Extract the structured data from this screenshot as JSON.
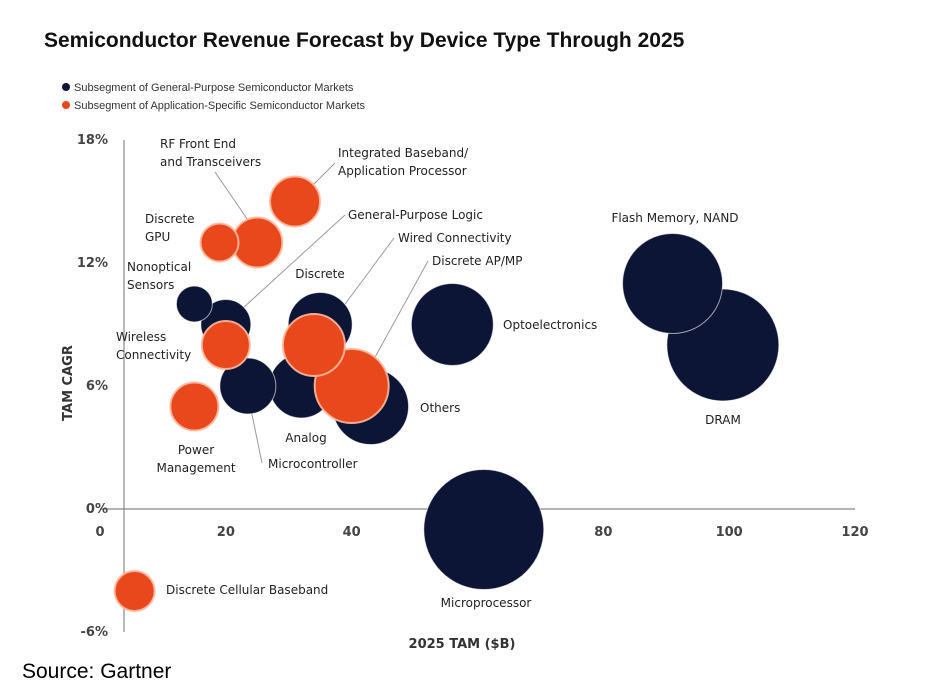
{
  "chart_data": {
    "type": "bubble",
    "title": "Semiconductor Revenue Forecast by Device Type Through 2025",
    "xlabel": "2025 TAM ($B)",
    "ylabel": "TAM CAGR",
    "xlim": [
      0,
      120
    ],
    "ylim": [
      -6,
      18
    ],
    "x_ticks": [
      "0",
      "20",
      "40",
      "60",
      "80",
      "100",
      "120"
    ],
    "y_ticks": [
      "18%",
      "12%",
      "6%",
      "0%",
      "-6%"
    ],
    "legend_position": "top-left",
    "grid": false,
    "colors": {
      "general": "#0d1536",
      "application": "#e8481c"
    },
    "legend": [
      {
        "key": "general",
        "label": "Subsegment of General-Purpose Semiconductor Markets"
      },
      {
        "key": "application",
        "label": "Subsegment of Application-Specific Semiconductor Markets"
      }
    ],
    "points": [
      {
        "label": "DRAM",
        "x": 99,
        "y": 8,
        "size": 56,
        "group": "general"
      },
      {
        "label": "Flash Memory, NAND",
        "x": 91,
        "y": 11,
        "size": 50,
        "group": "general"
      },
      {
        "label": "Microprocessor",
        "x": 61,
        "y": -1,
        "size": 60,
        "group": "general"
      },
      {
        "label": "Optoelectronics",
        "x": 56,
        "y": 9,
        "size": 41,
        "group": "general"
      },
      {
        "label": "Others",
        "x": 43,
        "y": 5,
        "size": 38,
        "group": "general"
      },
      {
        "label": "Analog",
        "x": 32,
        "y": 6,
        "size": 32,
        "group": "general"
      },
      {
        "label": "Discrete",
        "x": 35,
        "y": 9,
        "size": 32,
        "group": "general"
      },
      {
        "label": "Microcontroller",
        "x": 23.5,
        "y": 6,
        "size": 28,
        "group": "general"
      },
      {
        "label": "General-Purpose  Logic",
        "x": 20,
        "y": 9,
        "size": 25,
        "group": "general"
      },
      {
        "label": "Nonoptical Sensors",
        "x": 15,
        "y": 10,
        "size": 18,
        "group": "general"
      },
      {
        "label": "Discrete AP/MP",
        "x": 40,
        "y": 6,
        "size": 37,
        "group": "application"
      },
      {
        "label": "Wired Connectivity",
        "x": 34,
        "y": 8,
        "size": 31,
        "group": "application"
      },
      {
        "label": "Integrated Baseband/ Application Processor",
        "x": 31,
        "y": 15,
        "size": 25,
        "group": "application"
      },
      {
        "label": "RF Front End and Transceivers",
        "x": 25,
        "y": 13,
        "size": 25,
        "group": "application"
      },
      {
        "label": "Discrete GPU",
        "x": 19,
        "y": 13,
        "size": 19,
        "group": "application"
      },
      {
        "label": "Wireless Connectivity",
        "x": 20,
        "y": 8,
        "size": 24,
        "group": "application"
      },
      {
        "label": "Power Management",
        "x": 15,
        "y": 5,
        "size": 24,
        "group": "application"
      },
      {
        "label": "Discrete Cellular Baseband",
        "x": 5.5,
        "y": -4,
        "size": 20,
        "group": "application"
      }
    ]
  },
  "source": "Source: Gartner"
}
